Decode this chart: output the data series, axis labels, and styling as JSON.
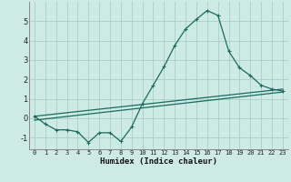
{
  "xlabel": "Humidex (Indice chaleur)",
  "background_color": "#ceeae4",
  "grid_color": "#aacec8",
  "line_color": "#1a6b60",
  "xlim": [
    -0.5,
    23.5
  ],
  "ylim": [
    -1.6,
    6.0
  ],
  "yticks": [
    -1,
    0,
    1,
    2,
    3,
    4,
    5
  ],
  "xticks": [
    0,
    1,
    2,
    3,
    4,
    5,
    6,
    7,
    8,
    9,
    10,
    11,
    12,
    13,
    14,
    15,
    16,
    17,
    18,
    19,
    20,
    21,
    22,
    23
  ],
  "main_x": [
    0,
    1,
    2,
    3,
    4,
    5,
    6,
    7,
    8,
    9,
    10,
    11,
    12,
    13,
    14,
    15,
    16,
    17,
    18,
    19,
    20,
    21,
    22,
    23
  ],
  "main_y": [
    0.1,
    -0.3,
    -0.6,
    -0.6,
    -0.7,
    -1.25,
    -0.75,
    -0.75,
    -1.2,
    -0.45,
    0.75,
    1.7,
    2.65,
    3.75,
    4.6,
    5.1,
    5.55,
    5.3,
    3.45,
    2.6,
    2.2,
    1.7,
    1.5,
    1.4
  ],
  "trend1_x": [
    0,
    23
  ],
  "trend1_y": [
    0.1,
    1.5
  ],
  "trend2_x": [
    0,
    23
  ],
  "trend2_y": [
    -0.1,
    1.35
  ]
}
